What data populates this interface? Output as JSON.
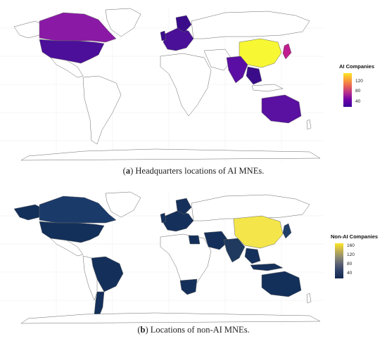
{
  "panel_a": {
    "caption_label": "a",
    "caption_text": "Headquarters locations of AI MNEs.",
    "legend_title": "AI Companies",
    "legend_ticks": [
      "120",
      "80",
      "40"
    ],
    "gradient": [
      "#fde725",
      "#fb9f3a",
      "#e65f58",
      "#b12a90",
      "#6a00a8",
      "#3b049a"
    ],
    "colors": {
      "us": "#4c0f9a",
      "canada": "#8a1aa6",
      "china": "#f7f734",
      "japan": "#c01e8e",
      "india": "#5a0ea3",
      "australia": "#5a10a0",
      "uk": "#3a0c8a",
      "europe": "#4a1098",
      "nordics": "#3a0c8a",
      "sea": "#3a0c8a"
    }
  },
  "panel_b": {
    "caption_label": "b",
    "caption_text": "Locations of non-AI MNEs.",
    "legend_title": "Non-AI Companies",
    "legend_ticks": [
      "160",
      "120",
      "80",
      "40"
    ],
    "gradient": [
      "#fde725",
      "#c7b24e",
      "#8c8a72",
      "#5a5f74",
      "#2a3d66",
      "#15294f"
    ],
    "colors": {
      "us": "#13305a",
      "canada": "#1a3a6a",
      "china": "#f4e64a",
      "japan": "#1f3f68",
      "brazil": "#14305a",
      "argentina": "#14305a",
      "southafrica": "#14305a",
      "australia": "#13305a",
      "russia": "#1a3a6a",
      "india": "#1f3a5e",
      "europe": "#15305a",
      "sea": "#15305a",
      "mideast": "#14305a",
      "egypt": "#14305a"
    }
  }
}
